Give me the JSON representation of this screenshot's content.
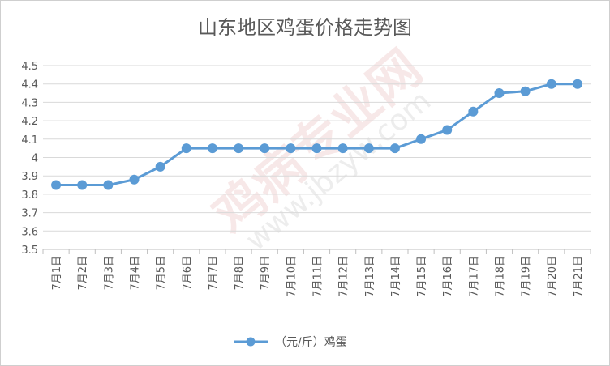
{
  "chart_data": {
    "type": "line",
    "title": "山东地区鸡蛋价格走势图",
    "categories": [
      "7月1日",
      "7月2日",
      "7月3日",
      "7月4日",
      "7月5日",
      "7月6日",
      "7月7日",
      "7月8日",
      "7月9日",
      "7月10日",
      "7月11日",
      "7月12日",
      "7月13日",
      "7月14日",
      "7月15日",
      "7月16日",
      "7月17日",
      "7月18日",
      "7月19日",
      "7月20日",
      "7月21日"
    ],
    "series": [
      {
        "name": "（元/斤）鸡蛋",
        "color": "#5b9bd5",
        "values": [
          3.85,
          3.85,
          3.85,
          3.88,
          3.95,
          4.05,
          4.05,
          4.05,
          4.05,
          4.05,
          4.05,
          4.05,
          4.05,
          4.05,
          4.1,
          4.15,
          4.25,
          4.35,
          4.36,
          4.4,
          4.4
        ]
      }
    ],
    "ylim": [
      3.5,
      4.5
    ],
    "yticks": [
      "3.5",
      "3.6",
      "3.7",
      "3.8",
      "3.9",
      "4",
      "4.1",
      "4.2",
      "4.3",
      "4.4",
      "4.5"
    ],
    "grid": true,
    "legend_position": "bottom"
  },
  "watermark": {
    "text1": "鸡病专业网",
    "text2": "www.jbzyw.com"
  }
}
